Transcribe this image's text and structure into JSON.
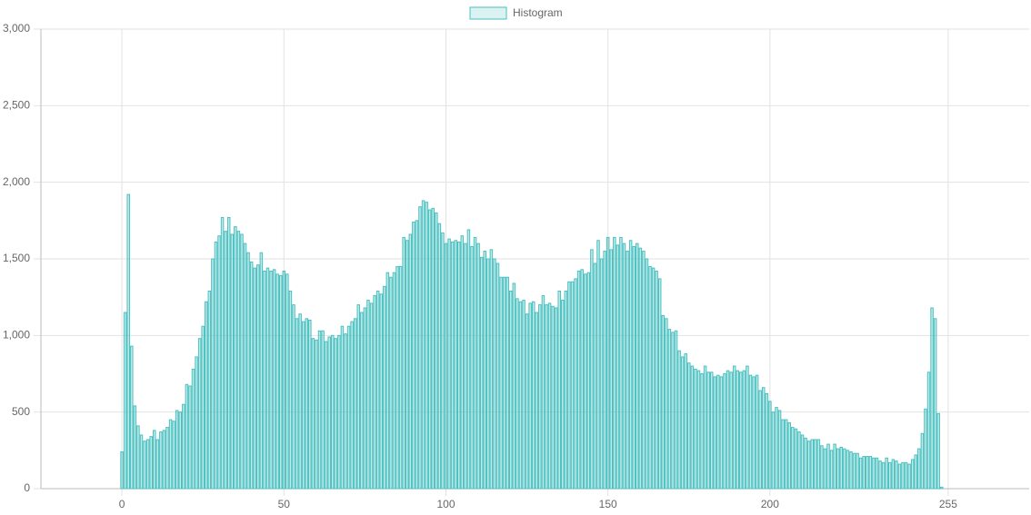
{
  "chart_data": {
    "type": "bar",
    "series": [
      {
        "name": "Histogram",
        "color": "#4bc0c0",
        "values": [
          240,
          1150,
          1920,
          930,
          540,
          410,
          350,
          310,
          320,
          340,
          380,
          320,
          370,
          380,
          400,
          450,
          440,
          510,
          500,
          550,
          680,
          670,
          780,
          860,
          980,
          1060,
          1220,
          1290,
          1500,
          1610,
          1650,
          1770,
          1680,
          1770,
          1660,
          1710,
          1680,
          1660,
          1600,
          1540,
          1480,
          1440,
          1460,
          1540,
          1420,
          1440,
          1420,
          1430,
          1400,
          1390,
          1420,
          1400,
          1290,
          1200,
          1110,
          1140,
          1090,
          1110,
          1100,
          980,
          970,
          1030,
          1030,
          960,
          990,
          1000,
          980,
          1000,
          1060,
          1010,
          1060,
          1090,
          1110,
          1200,
          1150,
          1180,
          1230,
          1210,
          1260,
          1290,
          1270,
          1320,
          1410,
          1380,
          1410,
          1450,
          1450,
          1640,
          1620,
          1660,
          1740,
          1750,
          1840,
          1880,
          1870,
          1820,
          1830,
          1800,
          1730,
          1670,
          1600,
          1630,
          1610,
          1620,
          1610,
          1650,
          1600,
          1690,
          1580,
          1640,
          1600,
          1510,
          1550,
          1500,
          1560,
          1500,
          1470,
          1380,
          1380,
          1380,
          1290,
          1340,
          1240,
          1220,
          1230,
          1140,
          1210,
          1220,
          1150,
          1200,
          1260,
          1200,
          1210,
          1190,
          1180,
          1290,
          1230,
          1290,
          1350,
          1350,
          1370,
          1420,
          1430,
          1400,
          1410,
          1560,
          1470,
          1620,
          1500,
          1550,
          1640,
          1560,
          1640,
          1590,
          1640,
          1600,
          1550,
          1620,
          1580,
          1600,
          1570,
          1550,
          1500,
          1450,
          1440,
          1420,
          1370,
          1130,
          1110,
          1040,
          1020,
          1030,
          900,
          860,
          880,
          820,
          800,
          780,
          770,
          750,
          800,
          760,
          760,
          730,
          740,
          730,
          750,
          770,
          760,
          800,
          770,
          760,
          770,
          800,
          740,
          730,
          740,
          640,
          660,
          620,
          570,
          500,
          530,
          510,
          450,
          450,
          430,
          400,
          390,
          370,
          350,
          330,
          310,
          320,
          320,
          320,
          280,
          260,
          290,
          250,
          290,
          260,
          270,
          260,
          250,
          240,
          230,
          230,
          200,
          210,
          210,
          210,
          200,
          200,
          180,
          170,
          200,
          170,
          190,
          180,
          160,
          170,
          170,
          160,
          190,
          220,
          260,
          360,
          520,
          760,
          1180,
          1110,
          490,
          10,
          0,
          0
        ]
      }
    ],
    "x": [
      0,
      1,
      2,
      3,
      4,
      5,
      6,
      7,
      8,
      9,
      10,
      11,
      12,
      13,
      14,
      15,
      16,
      17,
      18,
      19,
      20,
      21,
      22,
      23,
      24,
      25,
      26,
      27,
      28,
      29,
      30,
      31,
      32,
      33,
      34,
      35,
      36,
      37,
      38,
      39,
      40,
      41,
      42,
      43,
      44,
      45,
      46,
      47,
      48,
      49,
      50,
      51,
      52,
      53,
      54,
      55,
      56,
      57,
      58,
      59,
      60,
      61,
      62,
      63,
      64,
      65,
      66,
      67,
      68,
      69,
      70,
      71,
      72,
      73,
      74,
      75,
      76,
      77,
      78,
      79,
      80,
      81,
      82,
      83,
      84,
      85,
      86,
      87,
      88,
      89,
      90,
      91,
      92,
      93,
      94,
      95,
      96,
      97,
      98,
      99,
      100,
      101,
      102,
      103,
      104,
      105,
      106,
      107,
      108,
      109,
      110,
      111,
      112,
      113,
      114,
      115,
      116,
      117,
      118,
      119,
      120,
      121,
      122,
      123,
      124,
      125,
      126,
      127,
      128,
      129,
      130,
      131,
      132,
      133,
      134,
      135,
      136,
      137,
      138,
      139,
      140,
      141,
      142,
      143,
      144,
      145,
      146,
      147,
      148,
      149,
      150,
      151,
      152,
      153,
      154,
      155,
      156,
      157,
      158,
      159,
      160,
      161,
      162,
      163,
      164,
      165,
      166,
      167,
      168,
      169,
      170,
      171,
      172,
      173,
      174,
      175,
      176,
      177,
      178,
      179,
      180,
      181,
      182,
      183,
      184,
      185,
      186,
      187,
      188,
      189,
      190,
      191,
      192,
      193,
      194,
      195,
      196,
      197,
      198,
      199,
      200,
      201,
      202,
      203,
      204,
      205,
      206,
      207,
      208,
      209,
      210,
      211,
      212,
      213,
      214,
      215,
      216,
      217,
      218,
      219,
      220,
      221,
      222,
      223,
      224,
      225,
      226,
      227,
      228,
      229,
      230,
      231,
      232,
      233,
      234,
      235,
      236,
      237,
      238,
      239,
      240,
      241,
      242,
      243,
      244,
      245,
      246,
      247,
      248,
      249,
      250,
      251,
      252,
      253,
      254,
      255
    ],
    "xlim": [
      -25,
      280
    ],
    "xticks": [
      0,
      50,
      100,
      150,
      200,
      255
    ],
    "ylim": [
      0,
      3000
    ],
    "yticks": [
      0,
      500,
      {
        "value": 1000,
        "label": "1,000"
      },
      {
        "value": 1500,
        "label": "1,500"
      },
      {
        "value": 2000,
        "label": "2,000"
      },
      {
        "value": 2500,
        "label": "2,500"
      },
      {
        "value": 3000,
        "label": "3,000"
      }
    ],
    "grid": true,
    "legend": "top"
  }
}
